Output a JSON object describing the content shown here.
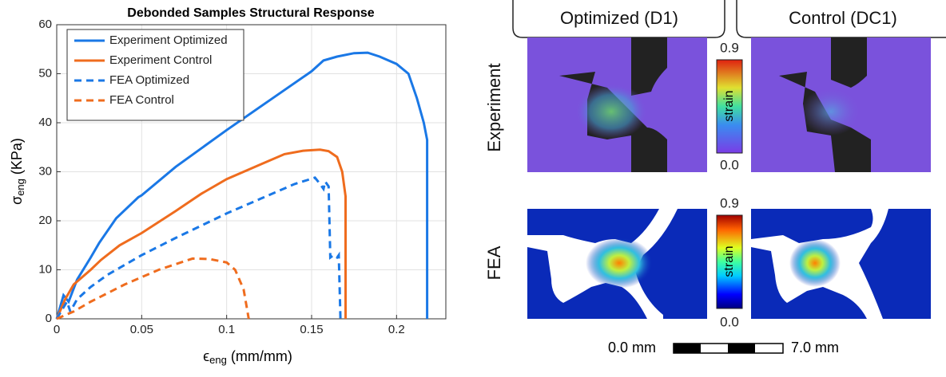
{
  "chart_data": {
    "type": "line",
    "title": "Debonded Samples Structural Response",
    "xlabel": "ϵ",
    "xlabel_sub": "eng",
    "xlabel_unit": "(mm/mm)",
    "ylabel": "σ",
    "ylabel_sub": "eng",
    "ylabel_unit": "(KPa)",
    "xlim": [
      0,
      0.229
    ],
    "xticks": [
      0,
      0.05,
      0.1,
      0.15,
      0.2
    ],
    "ylim": [
      0,
      60
    ],
    "yticks": [
      0,
      10,
      20,
      30,
      40,
      50,
      60
    ],
    "grid": true,
    "legend": "upper left",
    "series": [
      {
        "name": "Experiment Optimized",
        "color": "#1a78e6",
        "dash": "solid",
        "x": [
          0,
          0.004,
          0.007,
          0.012,
          0.02,
          0.025,
          0.035,
          0.048,
          0.05,
          0.07,
          0.1,
          0.125,
          0.15,
          0.157,
          0.165,
          0.175,
          0.183,
          0.19,
          0.2,
          0.207,
          0.212,
          0.216,
          0.218,
          0.218
        ],
        "values": [
          0,
          4.8,
          3.5,
          8,
          12.5,
          15.5,
          20.5,
          24.8,
          25.2,
          31,
          38.5,
          44.5,
          50.5,
          52.7,
          53.5,
          54.2,
          54.3,
          53.5,
          52,
          50,
          45,
          40,
          36.5,
          0
        ]
      },
      {
        "name": "Experiment Control",
        "color": "#ef6c1e",
        "dash": "solid",
        "x": [
          0,
          0.005,
          0.01,
          0.02,
          0.026,
          0.037,
          0.05,
          0.07,
          0.085,
          0.1,
          0.12,
          0.134,
          0.145,
          0.155,
          0.16,
          0.165,
          0.168,
          0.17,
          0.17,
          0.17
        ],
        "values": [
          0,
          4,
          7,
          10,
          12,
          15,
          17.5,
          22,
          25.5,
          28.5,
          31.5,
          33.6,
          34.3,
          34.5,
          34.2,
          33,
          30,
          25,
          18.5,
          0
        ]
      },
      {
        "name": "FEA Optimized",
        "color": "#1a78e6",
        "dash": "dashed",
        "x": [
          0,
          0.006,
          0.008,
          0.012,
          0.02,
          0.03,
          0.05,
          0.07,
          0.1,
          0.12,
          0.14,
          0.152,
          0.155,
          0.157,
          0.158,
          0.16,
          0.161,
          0.163,
          0.165,
          0.166,
          0.167
        ],
        "values": [
          0,
          3.5,
          1.5,
          4,
          6.5,
          9,
          13,
          16.5,
          21.5,
          24.5,
          27.5,
          28.8,
          27.5,
          26.5,
          28,
          27,
          12.5,
          13,
          12.5,
          13,
          0
        ]
      },
      {
        "name": "FEA Control",
        "color": "#ef6c1e",
        "dash": "dashed",
        "x": [
          0,
          0.01,
          0.02,
          0.04,
          0.06,
          0.08,
          0.09,
          0.1,
          0.105,
          0.11,
          0.112,
          0.113
        ],
        "values": [
          0,
          1.5,
          3.5,
          7,
          10,
          12.3,
          12.2,
          11.5,
          10,
          6,
          2,
          0
        ]
      }
    ]
  },
  "panels": {
    "columns": [
      "Optimized (D1)",
      "Control (DC1)"
    ],
    "rows": [
      "Experiment",
      "FEA"
    ],
    "colorbar": {
      "max": "0.9",
      "min": "0.0",
      "label": "strain"
    },
    "scale_bar": {
      "start": "0.0 mm",
      "end": "7.0 mm"
    }
  }
}
